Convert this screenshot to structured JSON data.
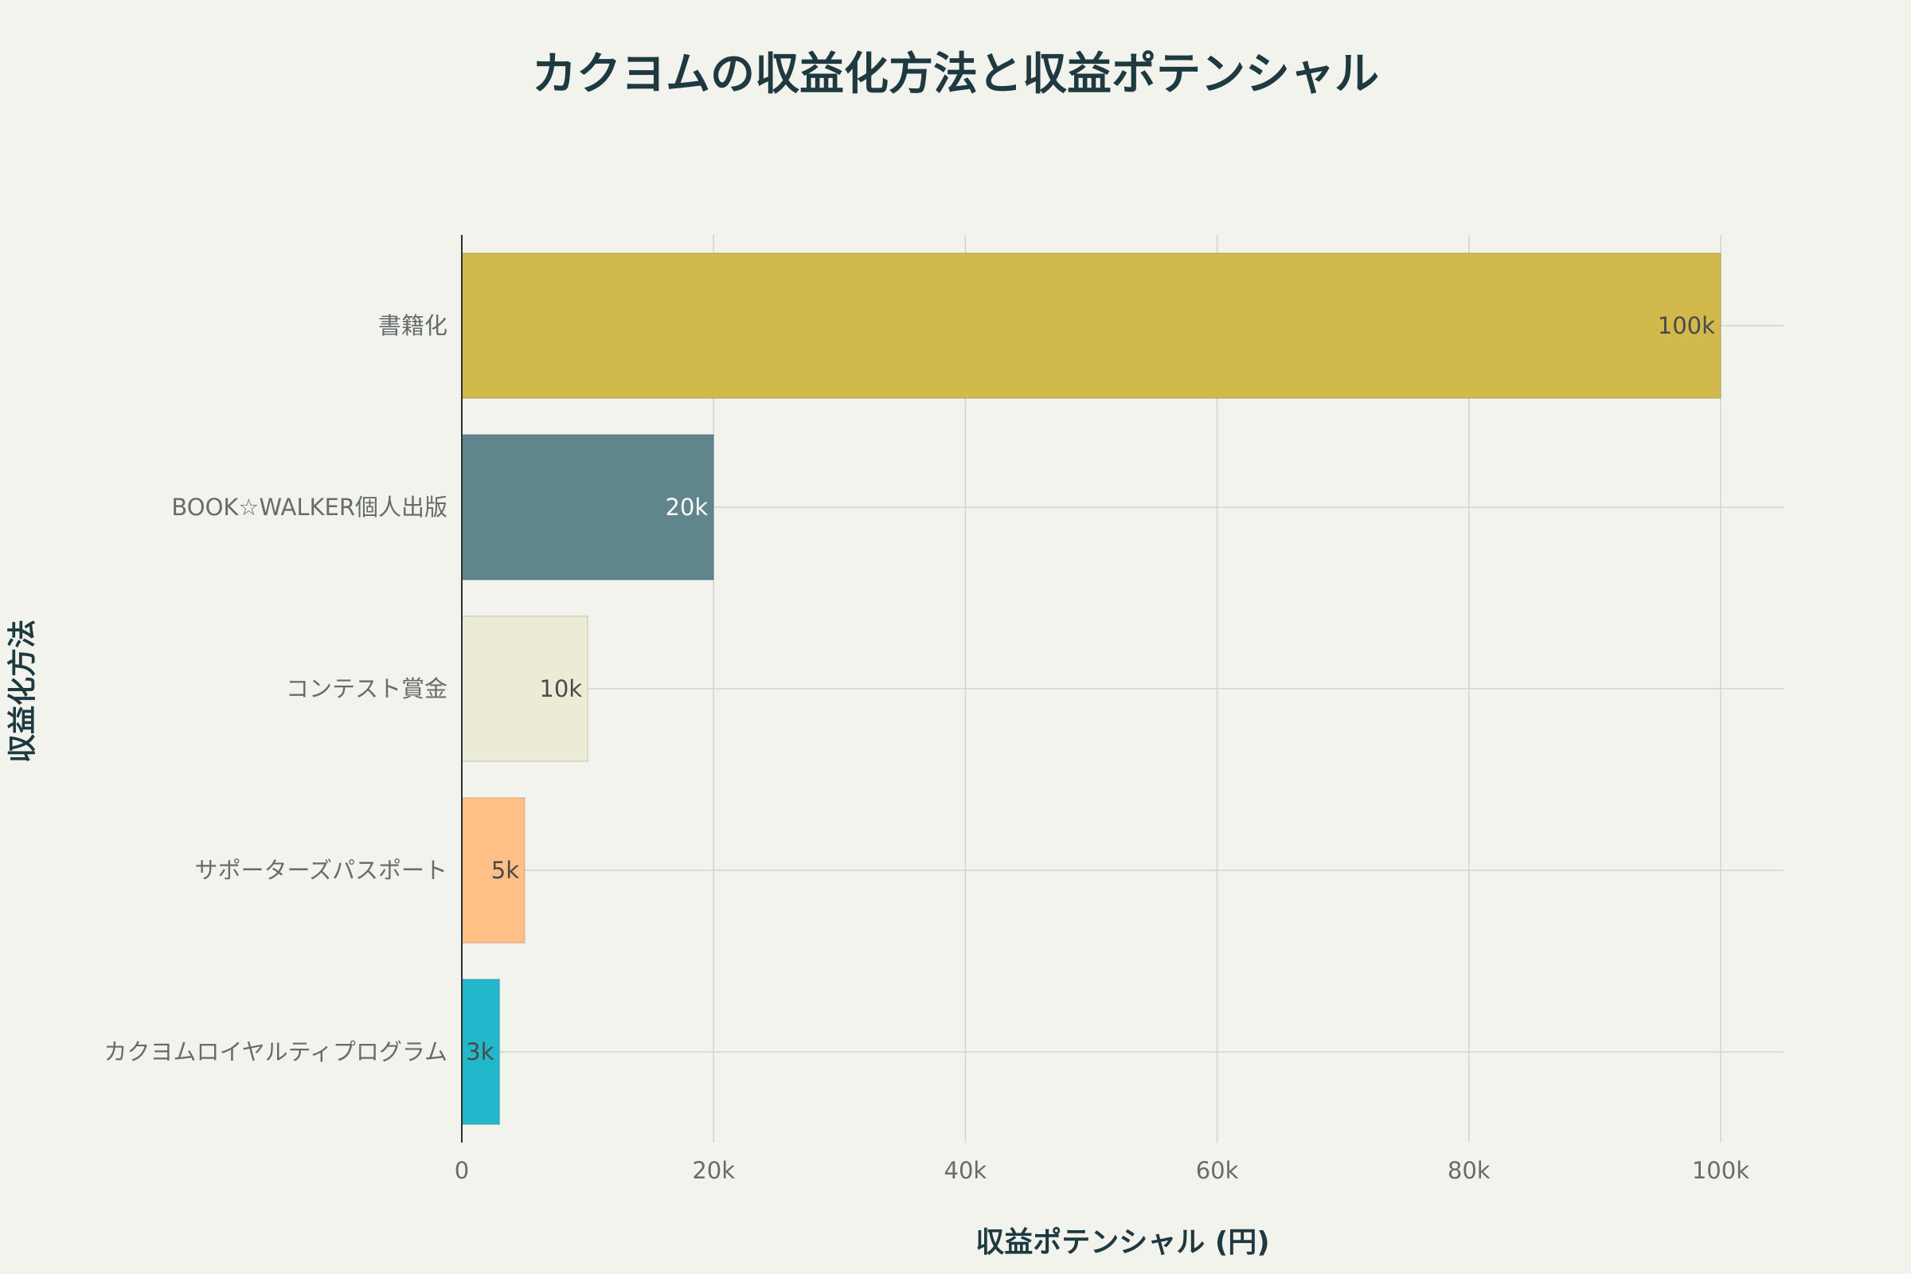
{
  "chart_data": {
    "type": "bar",
    "orientation": "horizontal",
    "title": "カクヨムの収益化方法と収益ポテンシャル",
    "xlabel": "収益ポテンシャル (円)",
    "ylabel": "収益化方法",
    "categories": [
      "書籍化",
      "BOOK☆WALKER個人出版",
      "コンテスト賞金",
      "サポーターズパスポート",
      "カクヨムロイヤルティプログラム"
    ],
    "values": [
      100000,
      20000,
      10000,
      5000,
      3000
    ],
    "data_labels": [
      "100k",
      "20k",
      "10k",
      "5k",
      "3k"
    ],
    "colors": [
      "#d2b94c",
      "#5e868c",
      "#ebebd6",
      "#ffc085",
      "#21b8cc"
    ],
    "label_colors": [
      "#4a4a4a",
      "#ffffff",
      "#4a4a4a",
      "#4a4a4a",
      "#4a4a4a"
    ],
    "xlim": [
      0,
      105000
    ],
    "xticks": [
      0,
      20000,
      40000,
      60000,
      80000,
      100000
    ],
    "xtick_labels": [
      "0",
      "20k",
      "40k",
      "60k",
      "80k",
      "100k"
    ],
    "grid": true,
    "legend": "none"
  }
}
